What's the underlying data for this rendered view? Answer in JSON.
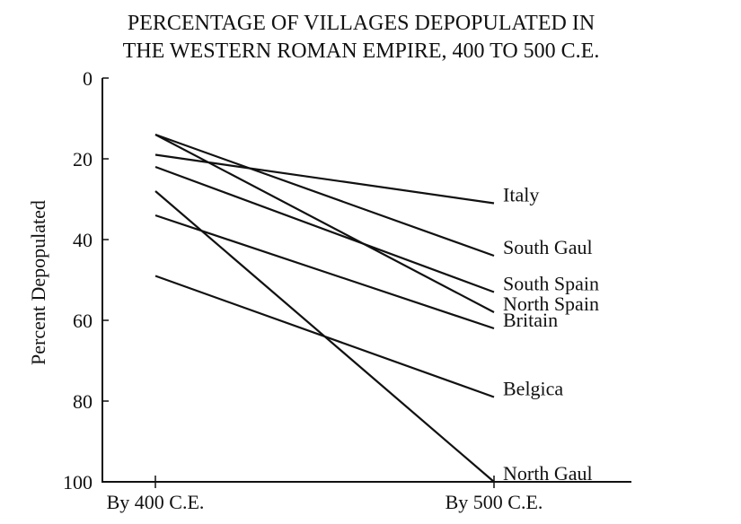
{
  "chart_data": {
    "type": "line",
    "title_lines": [
      "PERCENTAGE OF VILLAGES DEPOPULATED IN",
      "THE WESTERN ROMAN EMPIRE, 400 TO 500 C.E."
    ],
    "ylabel": "Percent Depopulated",
    "categories": [
      "By 400 C.E.",
      "By 500 C.E."
    ],
    "ylim": [
      0,
      100
    ],
    "y_inverted": true,
    "yticks": [
      "0",
      "20",
      "40",
      "60",
      "80",
      "100"
    ],
    "grid": false,
    "series": [
      {
        "name": "Italy",
        "values": [
          19,
          31
        ]
      },
      {
        "name": "South Gaul",
        "values": [
          14,
          44
        ]
      },
      {
        "name": "South Spain",
        "values": [
          22,
          53
        ]
      },
      {
        "name": "North Spain",
        "values": [
          14,
          58
        ]
      },
      {
        "name": "Britain",
        "values": [
          34,
          62
        ]
      },
      {
        "name": "Belgica",
        "values": [
          49,
          79
        ]
      },
      {
        "name": "North Gaul",
        "values": [
          28,
          100
        ]
      }
    ]
  }
}
